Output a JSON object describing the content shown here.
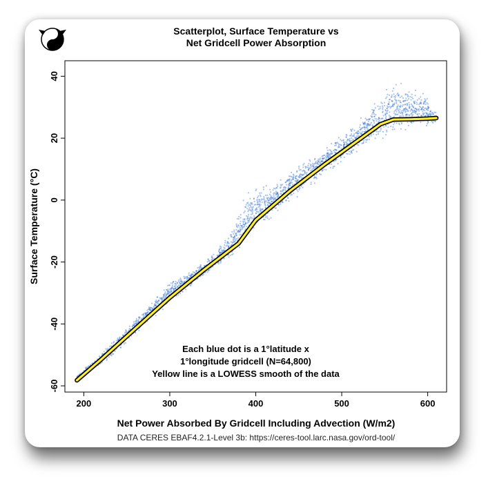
{
  "logo": {
    "icon": "yin-yang-face-logo"
  },
  "chart_data": {
    "type": "scatter",
    "title": [
      "Scatterplot, Surface Temperature vs",
      "Net Gridcell Power Absorption"
    ],
    "xlabel": "Net Power Absorbed By Gridcell Including Advection (W/m2)",
    "ylabel": "Surface Temperature (°C)",
    "xlim": [
      178,
      622
    ],
    "ylim": [
      -62,
      45
    ],
    "xticks": [
      "200",
      "300",
      "400",
      "500",
      "600"
    ],
    "xtick_values": [
      200,
      300,
      400,
      500,
      600
    ],
    "yticks": [
      "-60",
      "-40",
      "-20",
      "0",
      "20",
      "40"
    ],
    "ytick_values": [
      -60,
      -40,
      -20,
      0,
      20,
      40
    ],
    "grid": false,
    "point_count": 64800,
    "series": [
      {
        "name": "Each blue dot is a 1°latitude x 1°longitude gridcell",
        "kind": "points",
        "color": "#3a78d8",
        "envelope": [
          {
            "x": 192,
            "lo": -58.5,
            "hi": -56.5
          },
          {
            "x": 220,
            "lo": -54,
            "hi": -49
          },
          {
            "x": 260,
            "lo": -44,
            "hi": -38
          },
          {
            "x": 300,
            "lo": -34,
            "hi": -26
          },
          {
            "x": 340,
            "lo": -25,
            "hi": -20
          },
          {
            "x": 370,
            "lo": -20,
            "hi": -10
          },
          {
            "x": 390,
            "lo": -14,
            "hi": 4
          },
          {
            "x": 420,
            "lo": -6,
            "hi": 6
          },
          {
            "x": 460,
            "lo": 3,
            "hi": 14
          },
          {
            "x": 500,
            "lo": 11,
            "hi": 22
          },
          {
            "x": 530,
            "lo": 17,
            "hi": 30
          },
          {
            "x": 560,
            "lo": 20,
            "hi": 40
          },
          {
            "x": 590,
            "lo": 21,
            "hi": 38
          },
          {
            "x": 610,
            "lo": 24,
            "hi": 29
          }
        ]
      },
      {
        "name": "Yellow line is a LOWESS smooth of the data",
        "kind": "line",
        "color": "#ffee22",
        "x": [
          192,
          220,
          260,
          300,
          340,
          380,
          400,
          440,
          480,
          520,
          545,
          560,
          580,
          600,
          610
        ],
        "y": [
          -58.2,
          -51.5,
          -41.5,
          -31.5,
          -22.5,
          -14,
          -6.5,
          3,
          11.5,
          19.5,
          24.5,
          26,
          26.1,
          26.3,
          26.5
        ]
      }
    ],
    "annotation": [
      "Each blue dot is a 1°latitude x",
      "1°longitude gridcell (N=64,800)",
      "Yellow line is a LOWESS smooth of the data"
    ],
    "source": "DATA CERES EBAF4.2.1-Level 3b: https://ceres-tool.larc.nasa.gov/ord-tool/"
  }
}
